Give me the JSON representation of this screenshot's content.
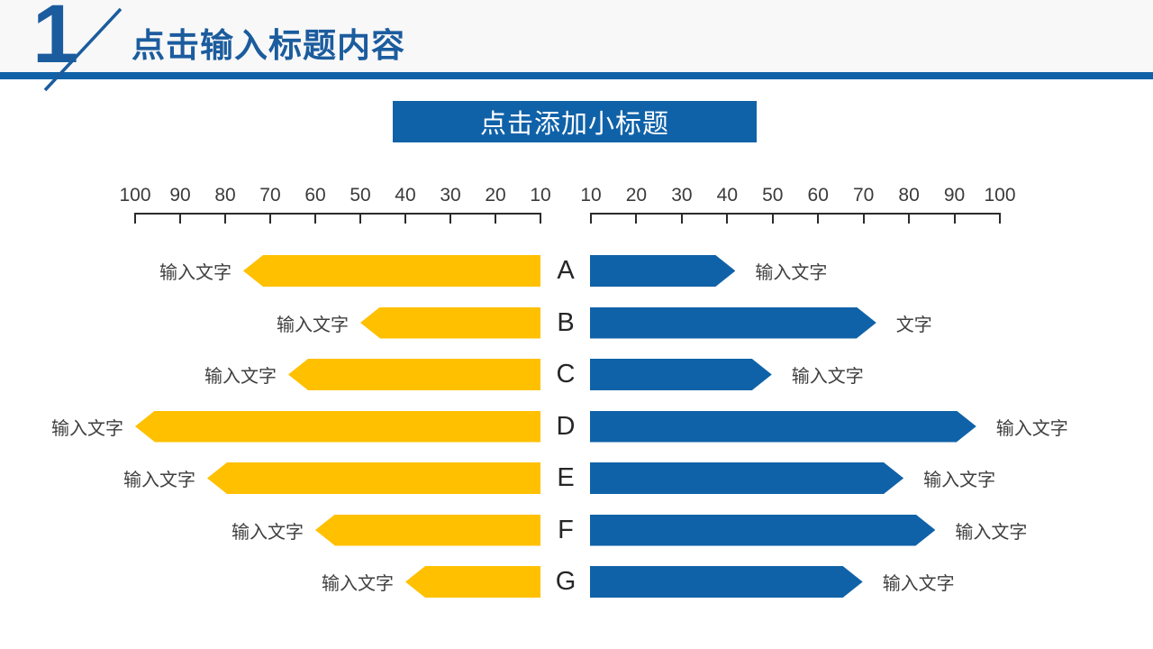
{
  "slide": {
    "section_number": "1",
    "title": "点击输入标题内容",
    "subtitle": "点击添加小标题"
  },
  "colors": {
    "accent_blue": "#1062A8",
    "header_text_blue": "#1B5C9E",
    "header_bg": "#F8F8F8",
    "bar_yellow": "#FFC000",
    "bar_blue": "#1062A8",
    "axis_color": "#2B2B2B",
    "label_color": "#3F3F3F"
  },
  "chart_data": {
    "type": "bar",
    "subtype": "tornado-arrow-bars",
    "title": "点击添加小标题",
    "categories": [
      "A",
      "B",
      "C",
      "D",
      "E",
      "F",
      "G"
    ],
    "axes": {
      "left": {
        "direction": "right-to-left",
        "min": 10,
        "max": 100,
        "ticks": [
          "100",
          "90",
          "80",
          "70",
          "60",
          "50",
          "40",
          "30",
          "20",
          "10"
        ]
      },
      "right": {
        "direction": "left-to-right",
        "min": 10,
        "max": 100,
        "ticks": [
          "10",
          "20",
          "30",
          "40",
          "50",
          "60",
          "70",
          "80",
          "90",
          "100"
        ]
      }
    },
    "series": [
      {
        "name": "left-yellow-bars",
        "side": "left",
        "color": "#FFC000",
        "values": [
          76,
          50,
          66,
          100,
          84,
          60,
          40
        ],
        "labels": [
          "输入文字",
          "输入文字",
          "输入文字",
          "输入文字",
          "输入文字",
          "输入文字",
          "输入文字"
        ]
      },
      {
        "name": "right-blue-bars",
        "side": "right",
        "color": "#1062A8",
        "values": [
          42,
          73,
          50,
          95,
          79,
          86,
          70
        ],
        "labels": [
          "输入文字",
          "文字",
          "输入文字",
          "输入文字",
          "输入文字",
          "输入文字",
          "输入文字"
        ]
      }
    ],
    "grid": false,
    "legend": false
  }
}
